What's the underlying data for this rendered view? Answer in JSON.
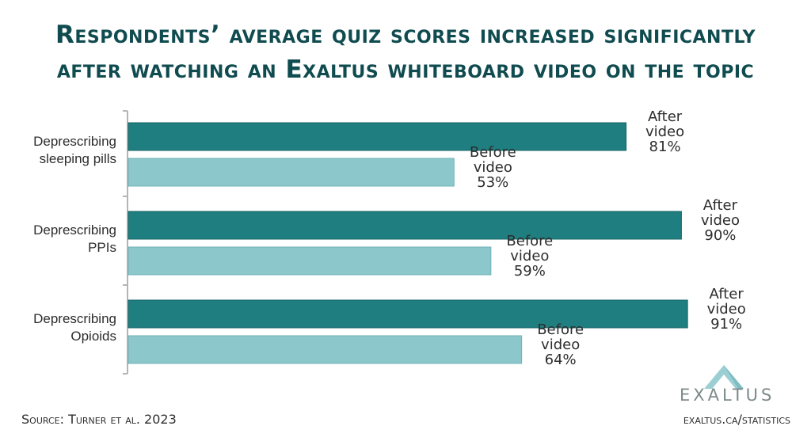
{
  "title_line1": "Respondents’ average quiz scores increased significantly",
  "title_line2": "after watching an Exaltus whiteboard video on the topic",
  "source": "Source: Turner et al. 2023",
  "url": "exaltus.ca/statistics",
  "logo_text": "EXALTUS",
  "colors": {
    "after": "#1f7e80",
    "before": "#8cc7cc",
    "title": "#0f4b4f",
    "axis": "#b5b5b5",
    "logo": "#9ccfd4"
  },
  "chart_data": {
    "type": "bar",
    "orientation": "horizontal",
    "title": "Respondents’ average quiz scores increased significantly after watching an Exaltus whiteboard video on the topic",
    "categories": [
      {
        "line1": "Deprescribing",
        "line2": "sleeping pills"
      },
      {
        "line1": "Deprescribing",
        "line2": "PPIs"
      },
      {
        "line1": "Deprescribing",
        "line2": "Opioids"
      }
    ],
    "series": [
      {
        "label_line1": "After",
        "label_line2": "video",
        "values": [
          81,
          90,
          91
        ]
      },
      {
        "label_line1": "Before",
        "label_line2": "video",
        "values": [
          53,
          59,
          64
        ]
      }
    ],
    "value_suffix": "%",
    "xlim": [
      0,
      100
    ],
    "grid": false,
    "legend": "none"
  }
}
